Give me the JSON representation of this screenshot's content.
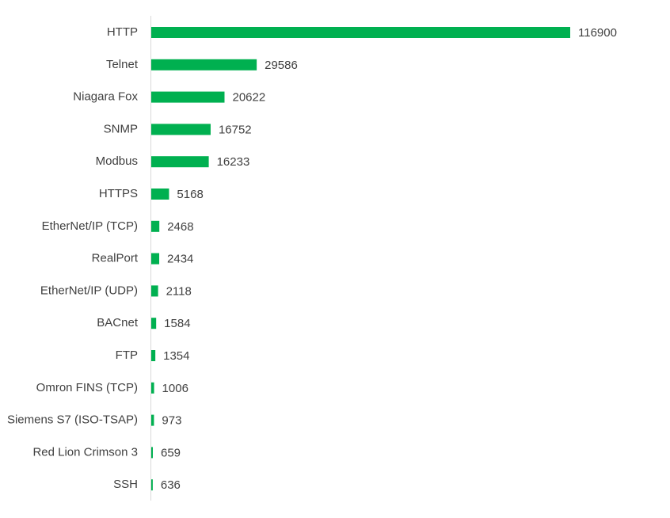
{
  "chart_data": {
    "type": "bar",
    "orientation": "horizontal",
    "color": "#00b050",
    "categories": [
      "HTTP",
      "Telnet",
      "Niagara Fox",
      "SNMP",
      "Modbus",
      "HTTPS",
      "EtherNet/IP (TCP)",
      "RealPort",
      "EtherNet/IP (UDP)",
      "BACnet",
      "FTP",
      "Omron FINS (TCP)",
      "Siemens S7 (ISO-TSAP)",
      "Red Lion Crimson 3",
      "SSH"
    ],
    "values": [
      116900,
      29586,
      20622,
      16752,
      16233,
      5168,
      2468,
      2434,
      2118,
      1584,
      1354,
      1006,
      973,
      659,
      636
    ],
    "data_labels": true
  }
}
